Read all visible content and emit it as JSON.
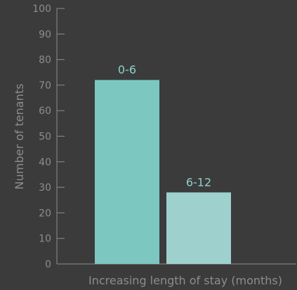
{
  "chart_data": {
    "type": "bar",
    "title": "",
    "xlabel": "Increasing length of stay (months)",
    "ylabel": "Number of tenants",
    "ylim": [
      0,
      100
    ],
    "y_ticks": [
      0,
      10,
      20,
      30,
      40,
      50,
      60,
      70,
      80,
      90,
      100
    ],
    "categories": [
      "0-6",
      "6-12"
    ],
    "values": [
      72,
      28
    ],
    "bar_labels": [
      "0-6",
      "6-12"
    ],
    "grid": false,
    "colors": {
      "background": "#3b3b3c",
      "axis": "#8d8d8d",
      "bar_1": "#7cc8c1",
      "bar_2": "#9ed1cd",
      "label_text": "#8fd0c9"
    }
  }
}
